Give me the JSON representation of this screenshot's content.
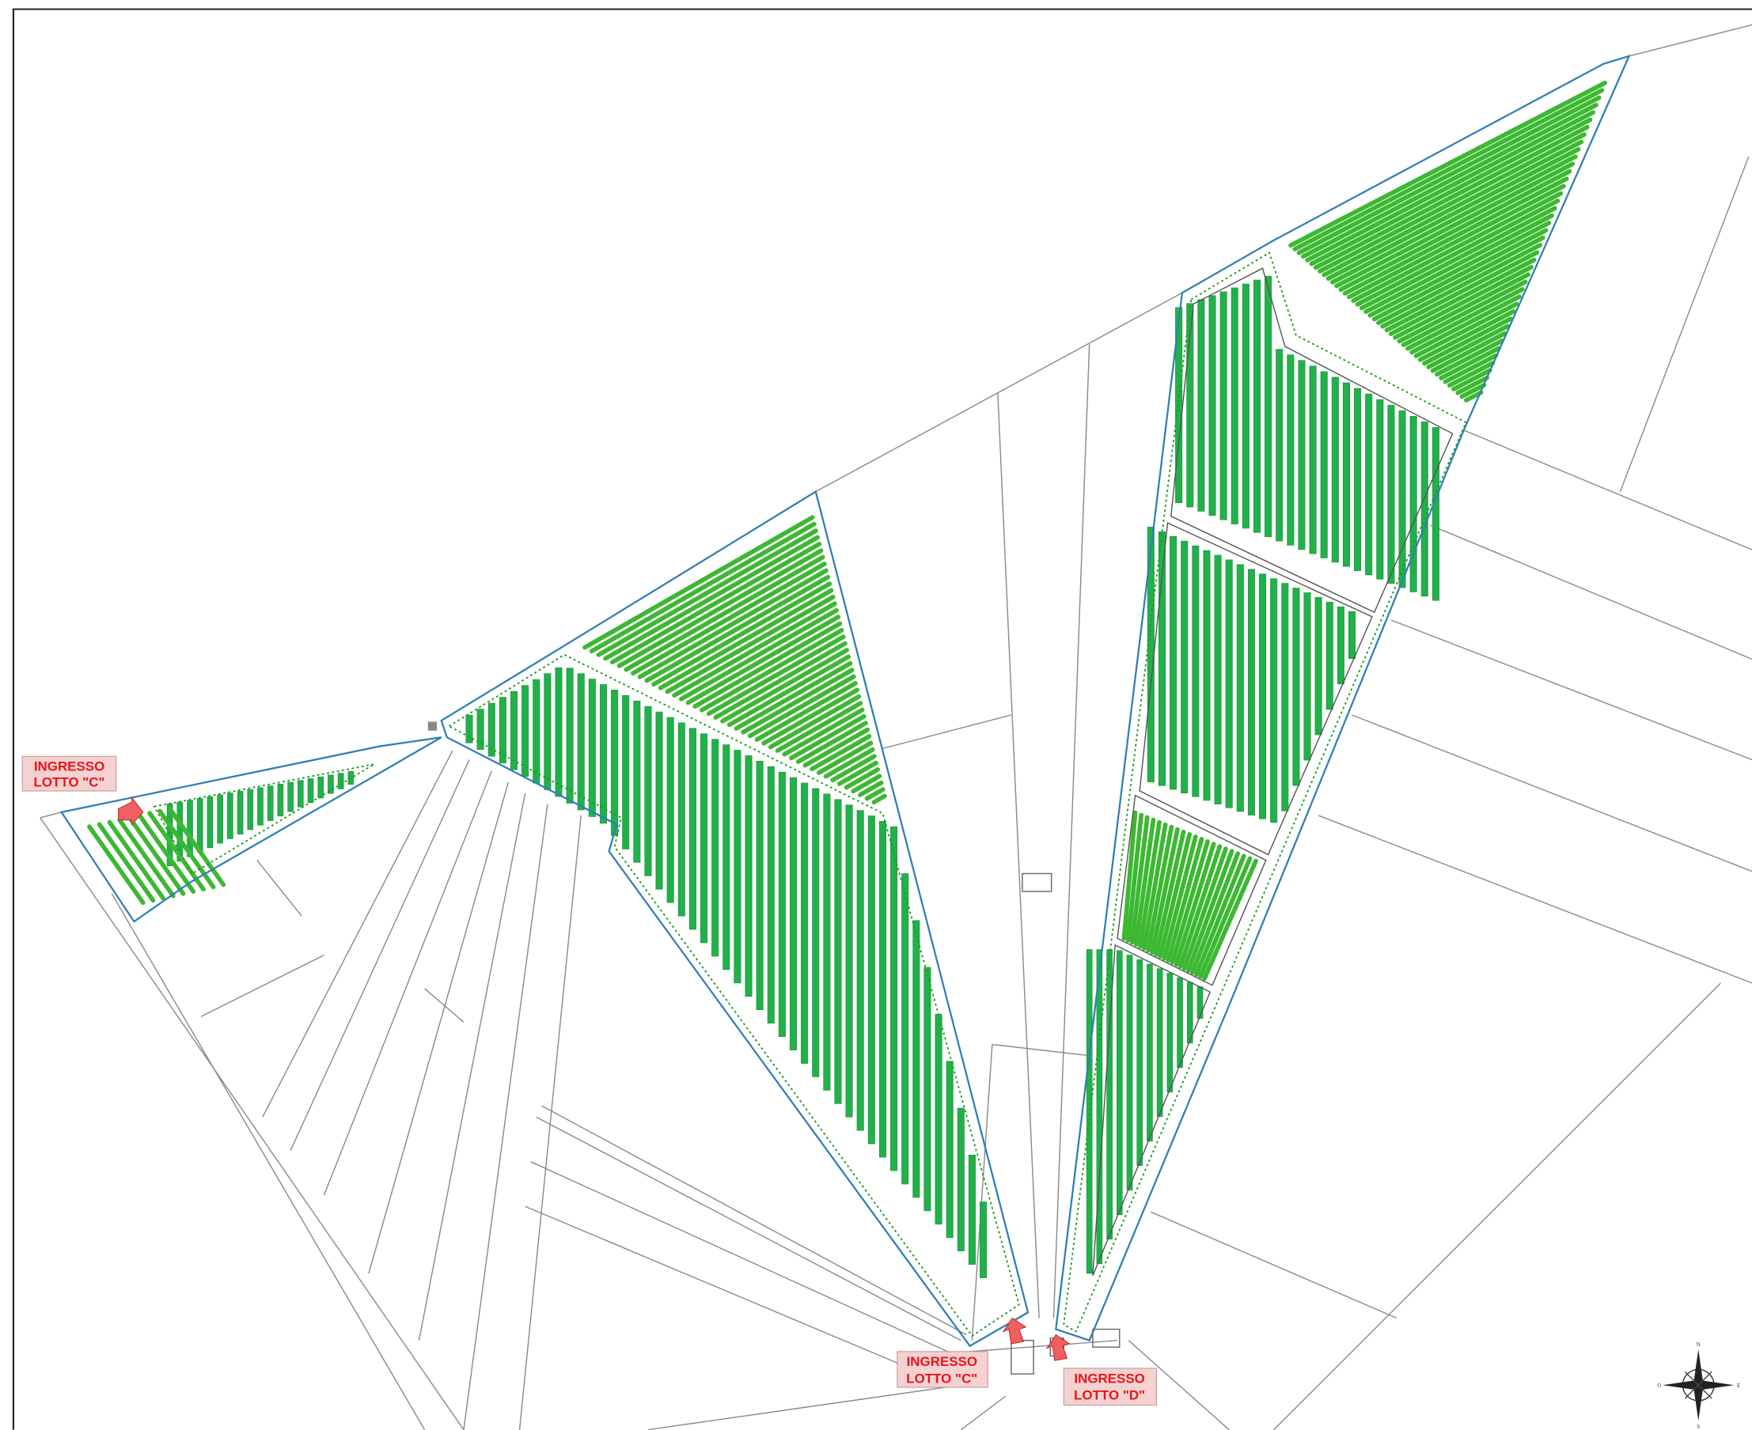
{
  "entrances": [
    {
      "line1": "INGRESSO",
      "line2": "LOTTO \"C\""
    },
    {
      "line1": "INGRESSO",
      "line2": "LOTTO \"C\""
    },
    {
      "line1": "INGRESSO",
      "line2": "LOTTO \"D\""
    }
  ],
  "compass": {
    "north": "N",
    "east": "E",
    "south": "S",
    "west": "O"
  }
}
